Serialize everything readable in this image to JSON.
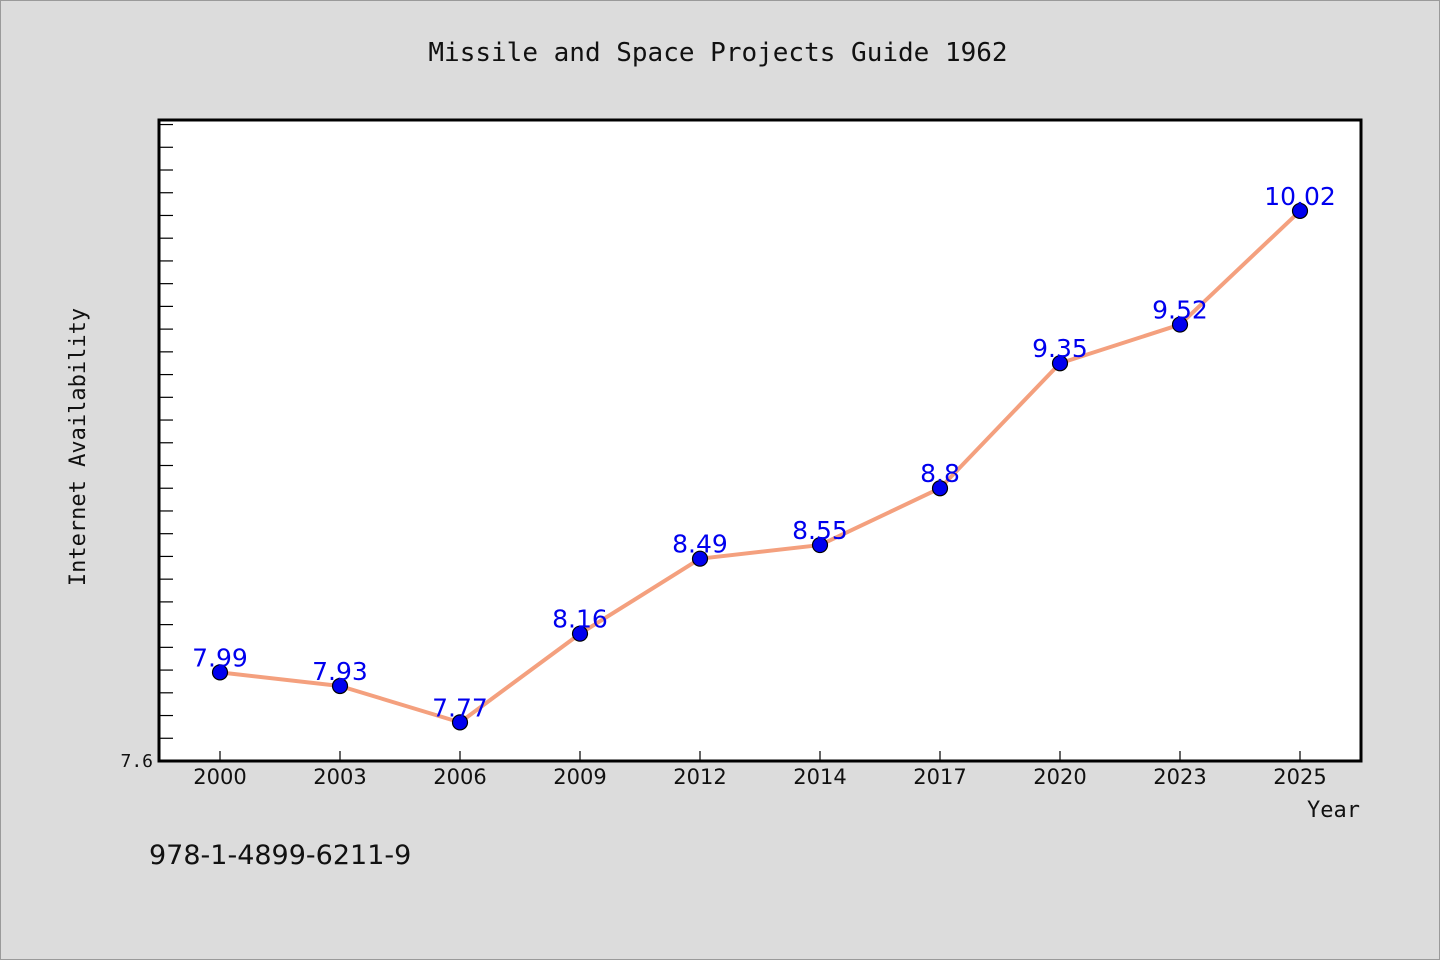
{
  "chart_data": {
    "type": "line",
    "title": "Missile and Space Projects Guide 1962",
    "xlabel": "Year",
    "ylabel": "Internet Availability",
    "categories": [
      "2000",
      "2003",
      "2006",
      "2009",
      "2012",
      "2014",
      "2017",
      "2020",
      "2023",
      "2025"
    ],
    "series": [
      {
        "values": [
          7.99,
          7.93,
          7.77,
          8.16,
          8.49,
          8.55,
          8.8,
          9.35,
          9.52,
          10.02
        ],
        "data_labels": [
          "7.99",
          "7.93",
          "7.77",
          "8.16",
          "8.49",
          "8.55",
          "8.8",
          "9.35",
          "9.52",
          "10.02"
        ]
      }
    ],
    "ylim": [
      7.6,
      10.42
    ],
    "yticks_labeled": [
      "7.6"
    ],
    "grid": false,
    "legend": "none",
    "line_color": "#f4a07e",
    "marker_color": "#0000ee",
    "label_color": "#0000ee",
    "plot_background": "#ffffff",
    "page_background": "#dcdcdc"
  },
  "footer": {
    "isbn": "978-1-4899-6211-9"
  }
}
